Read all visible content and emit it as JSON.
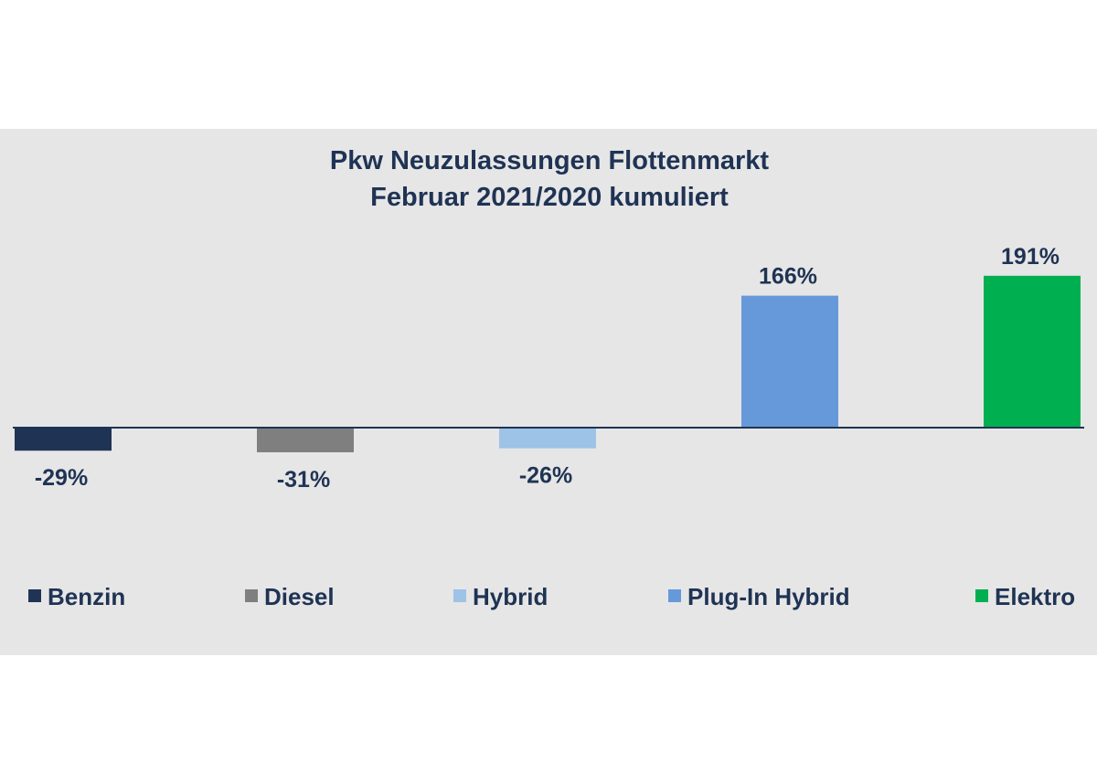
{
  "chart_data": {
    "type": "bar",
    "title": "Pkw Neuzulassungen Flottenmarkt",
    "subtitle": "Februar 2021/2020 kumuliert",
    "categories": [
      "Benzin",
      "Diesel",
      "Hybrid",
      "Plug-In Hybrid",
      "Elektro"
    ],
    "values": [
      -29,
      -31,
      -26,
      166,
      191
    ],
    "value_labels": [
      "-29%",
      "-31%",
      "-26%",
      "166%",
      "191%"
    ],
    "colors": [
      "#1f3354",
      "#7f7f7f",
      "#9dc3e6",
      "#6699d9",
      "#00b050"
    ],
    "unit": "%",
    "ylim": [
      -31,
      191
    ],
    "grid": false,
    "legend_position": "bottom",
    "legend": [
      "Benzin",
      "Diesel",
      "Hybrid",
      "Plug-In Hybrid",
      "Elektro"
    ]
  }
}
